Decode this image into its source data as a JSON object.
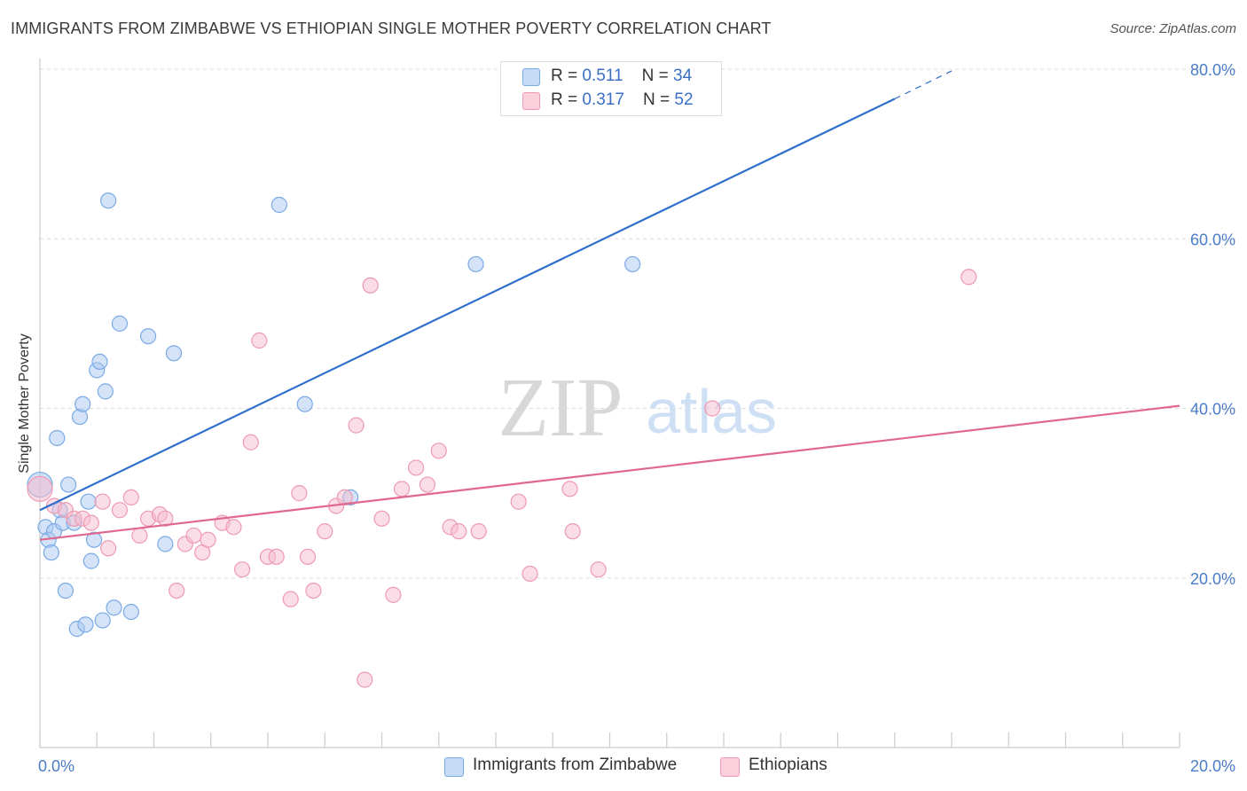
{
  "title": "IMMIGRANTS FROM ZIMBABWE VS ETHIOPIAN SINGLE MOTHER POVERTY CORRELATION CHART",
  "source": "Source: ZipAtlas.com",
  "watermark": {
    "zip": "ZIP",
    "atlas": "atlas"
  },
  "legend_top": {
    "rows": [
      {
        "r_label": "R = ",
        "r_value": "0.511",
        "n_label": "N = ",
        "n_value": "34"
      },
      {
        "r_label": "R = ",
        "r_value": "0.317",
        "n_label": "N = ",
        "n_value": "52"
      }
    ]
  },
  "legend_bottom": {
    "series1": "Immigrants from Zimbabwe",
    "series2": "Ethiopians"
  },
  "colors": {
    "blue_fill": "#a9c8f0",
    "blue_stroke": "#7aaae6",
    "blue_line": "#2e6fcc",
    "pink_fill": "#f6bccd",
    "pink_stroke": "#ee9ab3",
    "pink_line": "#e0688f",
    "tick_text": "#4a7cc9",
    "grid": "#dddddd"
  },
  "chart_data": {
    "type": "scatter",
    "title": "IMMIGRANTS FROM ZIMBABWE VS ETHIOPIAN SINGLE MOTHER POVERTY CORRELATION CHART",
    "xlabel": "",
    "ylabel": "Single Mother Poverty",
    "xlim": [
      0,
      20
    ],
    "ylim": [
      0,
      80
    ],
    "x_ticks": [
      {
        "value": 0,
        "label": "0.0%"
      },
      {
        "value": 20,
        "label": "20.0%"
      }
    ],
    "y_ticks": [
      {
        "value": 20,
        "label": "20.0%"
      },
      {
        "value": 40,
        "label": "40.0%"
      },
      {
        "value": 60,
        "label": "60.0%"
      },
      {
        "value": 80,
        "label": "80.0%"
      }
    ],
    "grid": true,
    "legend_position": "bottom",
    "series": [
      {
        "name": "Immigrants from Zimbabwe",
        "r": 0.511,
        "n": 34,
        "trend": {
          "x0": 0,
          "y0": 28.0,
          "x1": 15.0,
          "y1": 76.5,
          "dash_x1": 16.0,
          "dash_y1": 79.8
        },
        "points": [
          [
            0.0,
            31.0
          ],
          [
            0.1,
            26.0
          ],
          [
            0.15,
            24.5
          ],
          [
            0.2,
            23.0
          ],
          [
            0.25,
            25.5
          ],
          [
            0.3,
            36.5
          ],
          [
            0.35,
            28.0
          ],
          [
            0.4,
            26.5
          ],
          [
            0.45,
            18.5
          ],
          [
            0.5,
            31.0
          ],
          [
            0.6,
            26.5
          ],
          [
            0.65,
            14.0
          ],
          [
            0.7,
            39.0
          ],
          [
            0.75,
            40.5
          ],
          [
            0.8,
            14.5
          ],
          [
            0.85,
            29.0
          ],
          [
            0.9,
            22.0
          ],
          [
            0.95,
            24.5
          ],
          [
            1.0,
            44.5
          ],
          [
            1.05,
            45.5
          ],
          [
            1.1,
            15.0
          ],
          [
            1.15,
            42.0
          ],
          [
            1.2,
            64.5
          ],
          [
            1.3,
            16.5
          ],
          [
            1.4,
            50.0
          ],
          [
            1.6,
            16.0
          ],
          [
            1.9,
            48.5
          ],
          [
            2.2,
            24.0
          ],
          [
            2.35,
            46.5
          ],
          [
            4.2,
            64.0
          ],
          [
            4.65,
            40.5
          ],
          [
            5.45,
            29.5
          ],
          [
            7.65,
            57.0
          ],
          [
            10.4,
            57.0
          ]
        ]
      },
      {
        "name": "Ethiopians",
        "r": 0.317,
        "n": 52,
        "trend": {
          "x0": 0,
          "y0": 24.5,
          "x1": 20.0,
          "y1": 40.3
        },
        "points": [
          [
            0.0,
            30.5
          ],
          [
            0.25,
            28.5
          ],
          [
            0.45,
            28.0
          ],
          [
            0.6,
            27.0
          ],
          [
            0.75,
            27.0
          ],
          [
            0.9,
            26.5
          ],
          [
            1.1,
            29.0
          ],
          [
            1.2,
            23.5
          ],
          [
            1.4,
            28.0
          ],
          [
            1.6,
            29.5
          ],
          [
            1.75,
            25.0
          ],
          [
            1.9,
            27.0
          ],
          [
            2.1,
            27.5
          ],
          [
            2.2,
            27.0
          ],
          [
            2.4,
            18.5
          ],
          [
            2.55,
            24.0
          ],
          [
            2.7,
            25.0
          ],
          [
            2.85,
            23.0
          ],
          [
            2.95,
            24.5
          ],
          [
            3.2,
            26.5
          ],
          [
            3.4,
            26.0
          ],
          [
            3.55,
            21.0
          ],
          [
            3.7,
            36.0
          ],
          [
            3.85,
            48.0
          ],
          [
            4.0,
            22.5
          ],
          [
            4.15,
            22.5
          ],
          [
            4.4,
            17.5
          ],
          [
            4.55,
            30.0
          ],
          [
            4.7,
            22.5
          ],
          [
            4.8,
            18.5
          ],
          [
            5.0,
            25.5
          ],
          [
            5.2,
            28.5
          ],
          [
            5.35,
            29.5
          ],
          [
            5.55,
            38.0
          ],
          [
            5.7,
            8.0
          ],
          [
            5.8,
            54.5
          ],
          [
            6.0,
            27.0
          ],
          [
            6.2,
            18.0
          ],
          [
            6.35,
            30.5
          ],
          [
            6.6,
            33.0
          ],
          [
            6.8,
            31.0
          ],
          [
            7.0,
            35.0
          ],
          [
            7.2,
            26.0
          ],
          [
            7.35,
            25.5
          ],
          [
            7.7,
            25.5
          ],
          [
            8.4,
            29.0
          ],
          [
            8.6,
            20.5
          ],
          [
            9.3,
            30.5
          ],
          [
            9.35,
            25.5
          ],
          [
            9.8,
            21.0
          ],
          [
            11.8,
            40.0
          ],
          [
            16.3,
            55.5
          ]
        ]
      }
    ]
  }
}
